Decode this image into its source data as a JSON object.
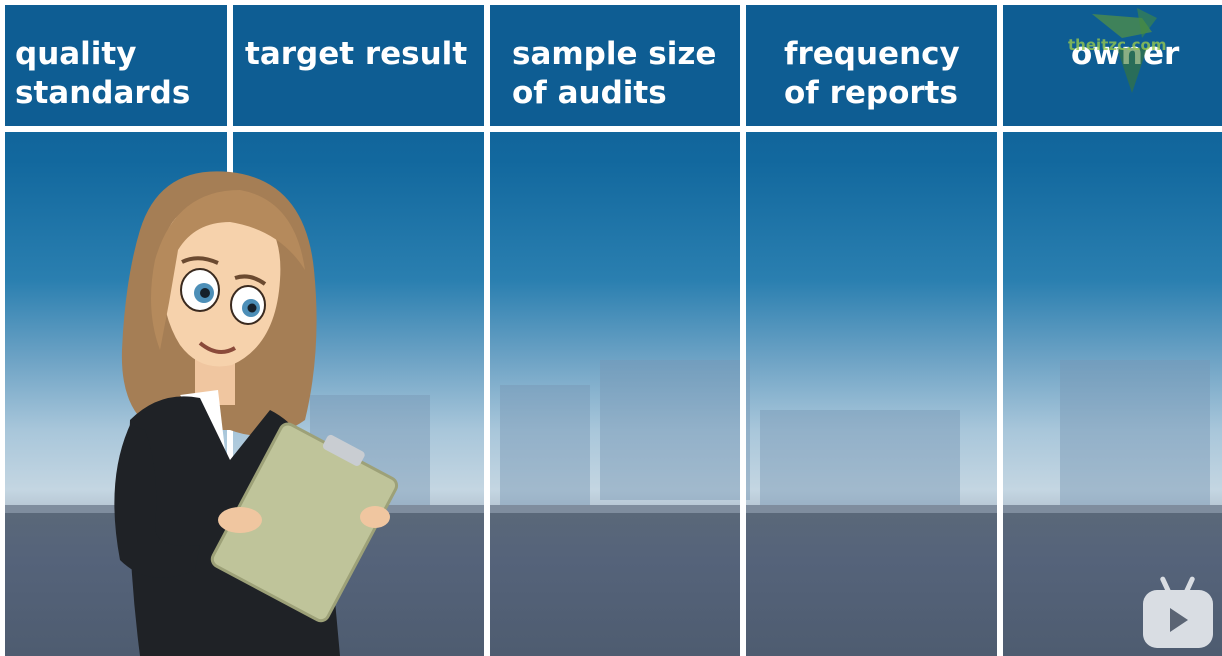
{
  "table": {
    "headers": [
      {
        "line1": "quality",
        "line2": "standards"
      },
      {
        "line1": "target result",
        "line2": ""
      },
      {
        "line1": "sample size",
        "line2": "of audits"
      },
      {
        "line1": "frequency",
        "line2": "of reports"
      },
      {
        "line1": "owner",
        "line2": ""
      }
    ]
  },
  "watermark": {
    "text": "theitzc.com",
    "icon": "logo-icon"
  },
  "player": {
    "icon": "play-icon"
  },
  "colors": {
    "header_bg": "#0e5d93",
    "header_text": "#ffffff",
    "divider": "#ffffff"
  }
}
